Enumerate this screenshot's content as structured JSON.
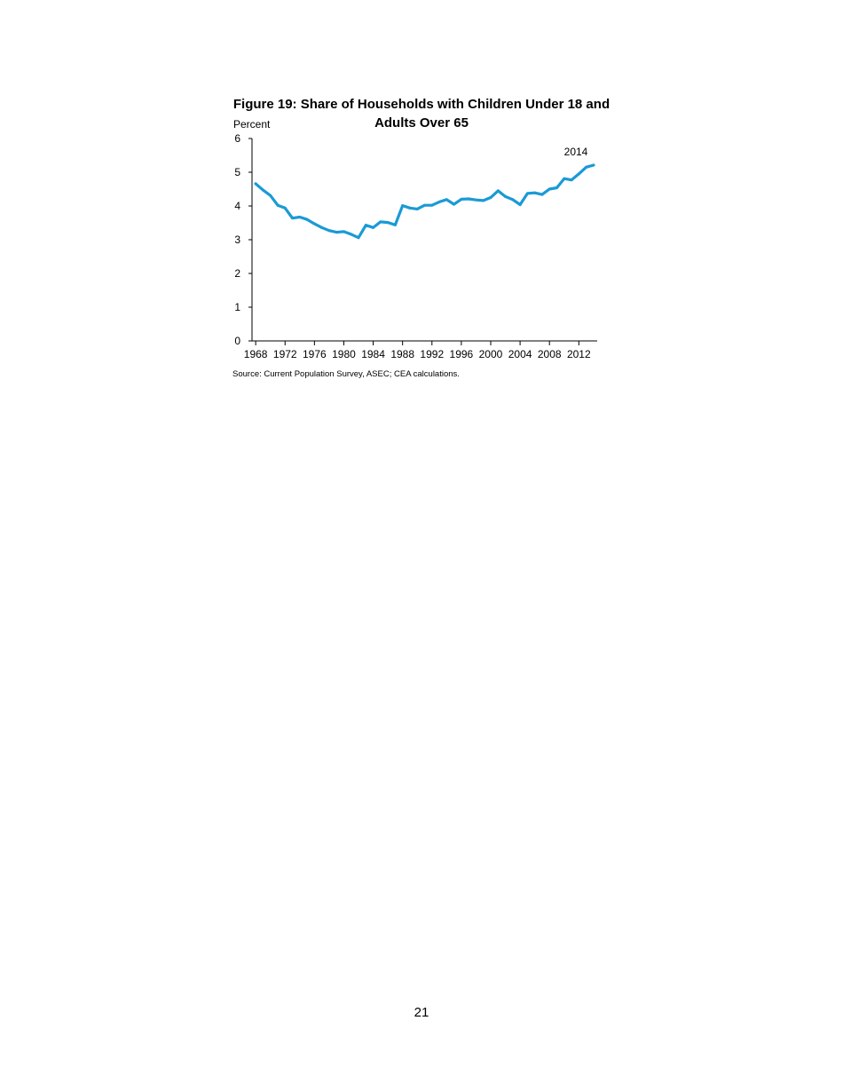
{
  "page": {
    "source_note": "Source: Current Population Survey, ASEC; CEA calculations.",
    "page_number": "21"
  },
  "chart_data": {
    "type": "line",
    "title": "Figure 19: Share of Households with Children Under 18 and Adults Over 65",
    "ylabel": "Percent",
    "xlabel": "",
    "ylim": [
      0,
      6
    ],
    "xlim": [
      1967.5,
      2014.5
    ],
    "y_ticks": [
      "0",
      "1",
      "2",
      "3",
      "4",
      "5",
      "6"
    ],
    "x_ticks": [
      "1968",
      "1972",
      "1976",
      "1980",
      "1984",
      "1988",
      "1992",
      "1996",
      "2000",
      "2004",
      "2008",
      "2012"
    ],
    "annotation": "2014",
    "grid": false,
    "series_color": "#1a9ad6",
    "x": [
      1968,
      1969,
      1970,
      1971,
      1972,
      1973,
      1974,
      1975,
      1976,
      1977,
      1978,
      1979,
      1980,
      1981,
      1982,
      1983,
      1984,
      1985,
      1986,
      1987,
      1988,
      1989,
      1990,
      1991,
      1992,
      1993,
      1994,
      1995,
      1996,
      1997,
      1998,
      1999,
      2000,
      2001,
      2002,
      2003,
      2004,
      2005,
      2006,
      2007,
      2008,
      2009,
      2010,
      2011,
      2012,
      2013,
      2014
    ],
    "values": [
      4.66,
      4.47,
      4.31,
      4.02,
      3.94,
      3.64,
      3.67,
      3.6,
      3.47,
      3.36,
      3.27,
      3.22,
      3.24,
      3.16,
      3.06,
      3.43,
      3.36,
      3.53,
      3.51,
      3.44,
      4.01,
      3.94,
      3.91,
      4.02,
      4.02,
      4.12,
      4.19,
      4.05,
      4.2,
      4.21,
      4.18,
      4.16,
      4.25,
      4.45,
      4.28,
      4.19,
      4.04,
      4.37,
      4.39,
      4.34,
      4.5,
      4.54,
      4.81,
      4.77,
      4.95,
      5.15,
      5.21
    ]
  }
}
